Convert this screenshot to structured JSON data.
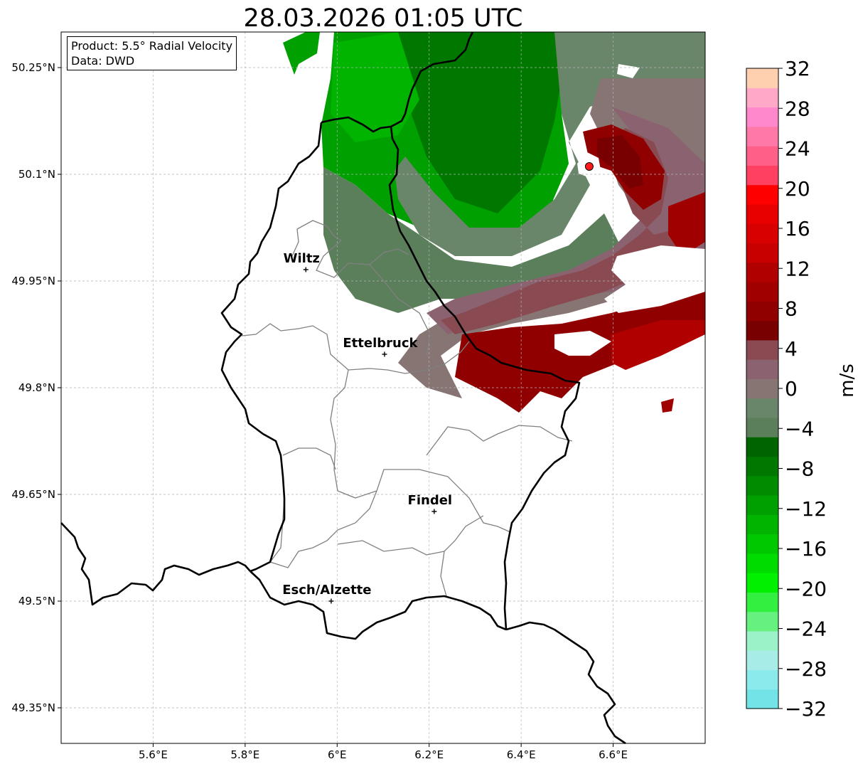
{
  "title": "28.03.2026 01:05 UTC",
  "info": {
    "product_line": "Product: 5.5° Radial Velocity",
    "data_line": "Data: DWD"
  },
  "map": {
    "lon_range": [
      5.4,
      6.8
    ],
    "lat_range": [
      49.3,
      50.3
    ],
    "lon_ticks": [
      "5.6°E",
      "5.8°E",
      "6°E",
      "6.2°E",
      "6.4°E",
      "6.6°E"
    ],
    "lat_ticks": [
      "50.25°N",
      "50.1°N",
      "49.95°N",
      "49.8°N",
      "49.65°N",
      "49.5°N",
      "49.35°N"
    ],
    "grid": true,
    "radar_site": {
      "lon": 6.548,
      "lat": 50.111,
      "color": "#ff1a1a"
    },
    "cities": [
      {
        "name": "Wiltz",
        "lon": 5.932,
        "lat": 49.966
      },
      {
        "name": "Ettelbruck",
        "lon": 6.103,
        "lat": 49.847
      },
      {
        "name": "Findel",
        "lon": 6.211,
        "lat": 49.626
      },
      {
        "name": "Esch/Alzette",
        "lon": 5.987,
        "lat": 49.5
      }
    ]
  },
  "colorbar": {
    "label": "m/s",
    "min": -32,
    "max": 32,
    "tick_labels": [
      "32",
      "28",
      "24",
      "20",
      "16",
      "12",
      "8",
      "4",
      "0",
      "−4",
      "−8",
      "−12",
      "−16",
      "−20",
      "−24",
      "−28",
      "−32"
    ],
    "colors_bottom_to_top": [
      "#74e3e8",
      "#8aeaec",
      "#a8ece8",
      "#9cf2c8",
      "#66f080",
      "#33f040",
      "#00f000",
      "#00dc00",
      "#00c800",
      "#00b400",
      "#00a000",
      "#008c00",
      "#007800",
      "#006400",
      "#5a7f5a",
      "#6a866a",
      "#877573",
      "#8a6270",
      "#8a4a52",
      "#780000",
      "#900000",
      "#a00000",
      "#b00000",
      "#c80000",
      "#d80000",
      "#e80000",
      "#ff0000",
      "#ff4060",
      "#ff6088",
      "#ff78a8",
      "#ff88cc",
      "#ffa8c8",
      "#ffd0b0"
    ]
  },
  "colors": {
    "country_border": "#000000",
    "canton_border": "#808080",
    "grid": "#b4b4b4"
  }
}
